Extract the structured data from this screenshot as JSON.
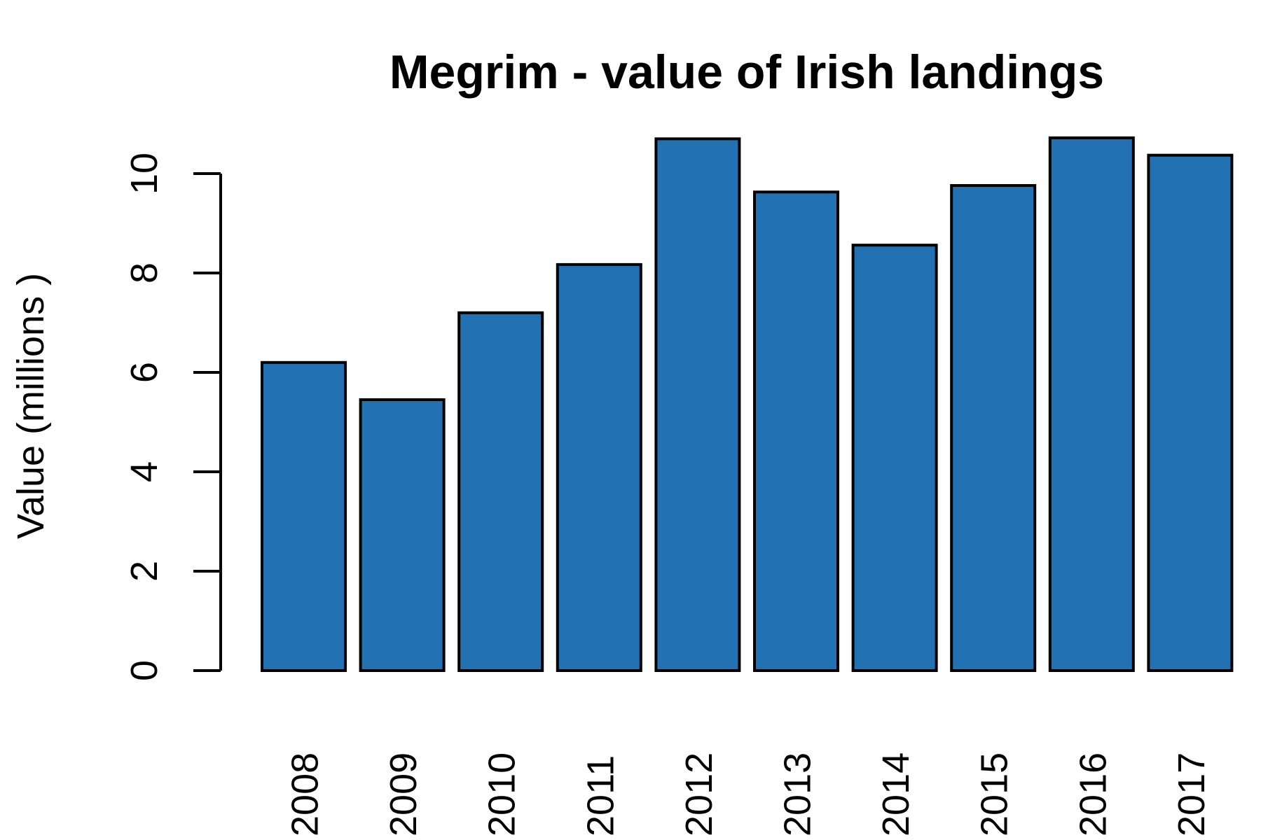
{
  "chart_data": {
    "type": "bar",
    "title": "Megrim - value of Irish landings",
    "ylabel": "Value (millions )",
    "xlabel": "",
    "categories": [
      "2008",
      "2009",
      "2010",
      "2011",
      "2012",
      "2013",
      "2014",
      "2015",
      "2016",
      "2017"
    ],
    "values": [
      6.2,
      5.45,
      7.2,
      8.17,
      10.7,
      9.63,
      8.56,
      9.76,
      10.72,
      10.37
    ],
    "ylim": [
      0,
      11
    ],
    "yticks": [
      "0",
      "2",
      "4",
      "6",
      "8",
      "10"
    ],
    "bar_color": "#2271b3",
    "grid": false,
    "legend": "none"
  }
}
